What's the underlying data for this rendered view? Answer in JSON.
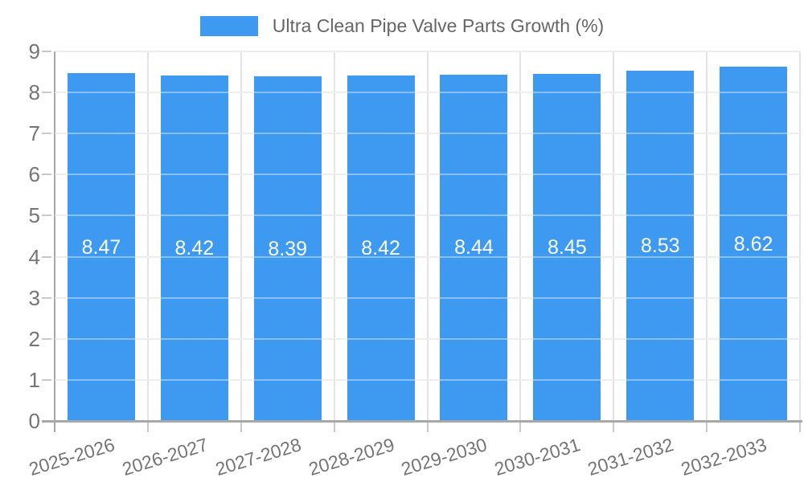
{
  "legend": {
    "label": "Ultra Clean Pipe Valve Parts Growth (%)"
  },
  "colors": {
    "bar": "#3D9AF0",
    "axis": "#a8a8a8",
    "gridline": "#e4e4e4",
    "tick": "#c9c9c9",
    "tick_label": "#757575",
    "legend_text": "#666666",
    "bar_label": "#ffffff",
    "background": "#ffffff"
  },
  "chart_data": {
    "type": "bar",
    "title": "Ultra Clean Pipe Valve Parts Growth (%)",
    "series_name": "Ultra Clean Pipe Valve Parts Growth (%)",
    "categories": [
      "2025-2026",
      "2026-2027",
      "2027-2028",
      "2028-2029",
      "2029-2030",
      "2030-2031",
      "2031-2032",
      "2032-2033"
    ],
    "values": [
      8.47,
      8.42,
      8.39,
      8.42,
      8.44,
      8.45,
      8.53,
      8.62
    ],
    "value_labels": [
      "8.47",
      "8.42",
      "8.39",
      "8.42",
      "8.44",
      "8.45",
      "8.53",
      "8.62"
    ],
    "xlabel": "",
    "ylabel": "",
    "ylim": [
      0,
      9
    ],
    "yticks": [
      0,
      1,
      2,
      3,
      4,
      5,
      6,
      7,
      8,
      9
    ],
    "grid": true,
    "legend_position": "top-center",
    "bar_value_labels_inside": true
  }
}
